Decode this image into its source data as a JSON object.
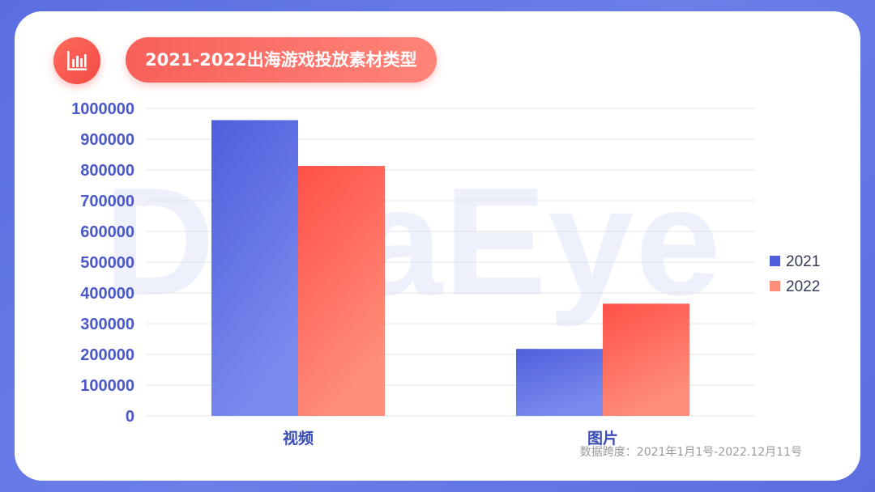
{
  "title": "2021-2022出海游戏投放素材类型",
  "footnote": "数据跨度：2021年1月1号-2022.12月11号",
  "watermark": "DataEye",
  "icon": "bar-chart-icon",
  "colors": {
    "series_2021_top": "#4f5fdc",
    "series_2021_bottom": "#7a8bef",
    "series_2022_top": "#ff5048",
    "series_2022_bottom": "#ff8e7a",
    "axis_text": "#4a58c8",
    "accent": "#f5534b"
  },
  "chart_data": {
    "type": "bar",
    "categories": [
      "视频",
      "图片"
    ],
    "series": [
      {
        "name": "2021",
        "values": [
          962000,
          218000
        ]
      },
      {
        "name": "2022",
        "values": [
          813000,
          365000
        ]
      }
    ],
    "yticks": [
      "1000000",
      "900000",
      "800000",
      "700000",
      "600000",
      "500000",
      "400000",
      "300000",
      "200000",
      "100000",
      "0"
    ],
    "ylim": [
      0,
      1000000
    ],
    "grid": true,
    "legend": "right"
  }
}
